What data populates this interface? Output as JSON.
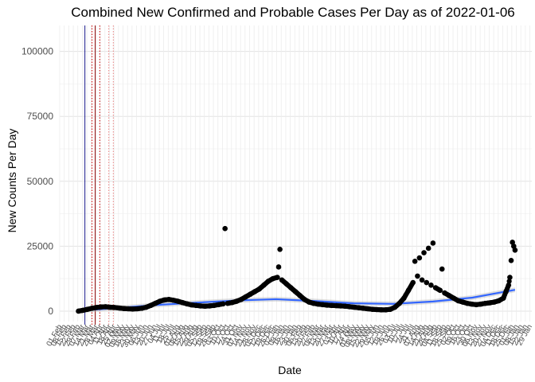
{
  "chart_data": {
    "type": "scatter",
    "title": "Combined New Confirmed and Probable Cases Per Day as of 2022-01-06",
    "xlabel": "Date",
    "ylabel": "New Counts Per Day",
    "ylim": [
      -4000,
      110000
    ],
    "y_ticks": [
      0,
      25000,
      50000,
      75000,
      100000
    ],
    "y_tick_labels": [
      "0",
      "25000",
      "50000",
      "75000",
      "100000"
    ],
    "x_date_range": [
      "2020-02-01",
      "2022-02-01"
    ],
    "x_tick_labels_note": "Weekly date tick labels, rotated 60°, heavily overlapping",
    "x_tick_labels": [
      "01 Feb",
      "08 Feb",
      "15 Feb",
      "22 Feb",
      "29 Feb",
      "07 Mar",
      "14 Mar",
      "21 Mar",
      "28 Mar",
      "04 Apr",
      "11 Apr",
      "18 Apr",
      "25 Apr",
      "02 May",
      "09 May",
      "16 May",
      "23 May",
      "30 May",
      "06 Jun",
      "13 Jun",
      "20 Jun",
      "27 Jun",
      "04 Jul",
      "11 Jul",
      "18 Jul",
      "25 Jul",
      "01 Aug",
      "08 Aug",
      "15 Aug",
      "22 Aug",
      "29 Aug",
      "05 Sep",
      "12 Sep",
      "19 Sep",
      "26 Sep",
      "03 Oct",
      "10 Oct",
      "17 Oct",
      "24 Oct",
      "31 Oct",
      "07 Nov",
      "14 Nov",
      "21 Nov",
      "28 Nov",
      "05 Dec",
      "12 Dec",
      "19 Dec",
      "26 Dec",
      "02 Jan",
      "09 Jan",
      "16 Jan",
      "23 Jan",
      "30 Jan",
      "06 Feb",
      "13 Feb",
      "20 Feb",
      "27 Feb",
      "06 Mar",
      "13 Mar",
      "20 Mar",
      "27 Mar",
      "03 Apr",
      "10 Apr",
      "17 Apr",
      "24 Apr",
      "01 May",
      "08 May",
      "15 May",
      "22 May",
      "29 May",
      "05 Jun",
      "12 Jun",
      "19 Jun",
      "26 Jun",
      "03 Jul",
      "10 Jul",
      "17 Jul",
      "24 Jul",
      "31 Jul",
      "07 Aug",
      "14 Aug",
      "21 Aug",
      "28 Aug",
      "04 Sep",
      "11 Sep",
      "18 Sep",
      "25 Sep",
      "02 Oct",
      "09 Oct",
      "16 Oct",
      "23 Oct",
      "30 Oct",
      "06 Nov",
      "13 Nov",
      "20 Nov",
      "27 Nov",
      "04 Dec",
      "11 Dec",
      "18 Dec",
      "25 Dec",
      "01 Jan",
      "08 Jan",
      "15 Jan",
      "22 Jan",
      "29 Jan"
    ],
    "vlines": [
      {
        "date": "2020-03-11",
        "color": "#1a1a8c",
        "style": "solid"
      },
      {
        "date": "2020-03-27",
        "color": "#8b0000",
        "style": "solid"
      },
      {
        "date": "2020-03-22",
        "color": "#cc0000",
        "style": "dotted"
      },
      {
        "date": "2020-04-03",
        "color": "#cc0000",
        "style": "dotted"
      },
      {
        "date": "2020-04-17",
        "color": "#e88080",
        "style": "dotted"
      },
      {
        "date": "2020-04-24",
        "color": "#e88080",
        "style": "dotted"
      }
    ],
    "series": [
      {
        "kind": "points",
        "color": "#000000",
        "points": [
          [
            "2020-03-01",
            0
          ],
          [
            "2020-03-08",
            300
          ],
          [
            "2020-03-15",
            700
          ],
          [
            "2020-03-22",
            1100
          ],
          [
            "2020-03-29",
            1400
          ],
          [
            "2020-04-05",
            1600
          ],
          [
            "2020-04-12",
            1700
          ],
          [
            "2020-04-19",
            1500
          ],
          [
            "2020-04-26",
            1400
          ],
          [
            "2020-05-03",
            1200
          ],
          [
            "2020-05-10",
            1000
          ],
          [
            "2020-05-17",
            900
          ],
          [
            "2020-05-24",
            800
          ],
          [
            "2020-05-31",
            900
          ],
          [
            "2020-06-07",
            1100
          ],
          [
            "2020-06-14",
            1500
          ],
          [
            "2020-06-21",
            2200
          ],
          [
            "2020-06-28",
            3000
          ],
          [
            "2020-07-05",
            3800
          ],
          [
            "2020-07-12",
            4300
          ],
          [
            "2020-07-19",
            4500
          ],
          [
            "2020-07-26",
            4200
          ],
          [
            "2020-08-02",
            3800
          ],
          [
            "2020-08-09",
            3300
          ],
          [
            "2020-08-16",
            2800
          ],
          [
            "2020-08-23",
            2400
          ],
          [
            "2020-08-30",
            2200
          ],
          [
            "2020-09-06",
            2000
          ],
          [
            "2020-09-13",
            1900
          ],
          [
            "2020-09-20",
            2000
          ],
          [
            "2020-09-27",
            2200
          ],
          [
            "2020-10-04",
            2500
          ],
          [
            "2020-10-11",
            2800
          ],
          [
            "2020-10-14",
            31800
          ],
          [
            "2020-10-18",
            3000
          ],
          [
            "2020-10-25",
            3300
          ],
          [
            "2020-11-01",
            3800
          ],
          [
            "2020-11-08",
            4500
          ],
          [
            "2020-11-15",
            5500
          ],
          [
            "2020-11-22",
            6500
          ],
          [
            "2020-11-29",
            7500
          ],
          [
            "2020-12-06",
            8500
          ],
          [
            "2020-12-13",
            10000
          ],
          [
            "2020-12-20",
            11500
          ],
          [
            "2020-12-27",
            12500
          ],
          [
            "2021-01-03",
            13000
          ],
          [
            "2021-01-05",
            17000
          ],
          [
            "2021-01-07",
            23800
          ],
          [
            "2021-01-10",
            12000
          ],
          [
            "2021-01-17",
            10500
          ],
          [
            "2021-01-24",
            9000
          ],
          [
            "2021-01-31",
            7500
          ],
          [
            "2021-02-07",
            6000
          ],
          [
            "2021-02-14",
            4500
          ],
          [
            "2021-02-21",
            3500
          ],
          [
            "2021-02-28",
            3000
          ],
          [
            "2021-03-07",
            2700
          ],
          [
            "2021-03-14",
            2500
          ],
          [
            "2021-03-21",
            2300
          ],
          [
            "2021-03-28",
            2200
          ],
          [
            "2021-04-04",
            2100
          ],
          [
            "2021-04-11",
            2000
          ],
          [
            "2021-04-18",
            1900
          ],
          [
            "2021-04-25",
            1700
          ],
          [
            "2021-05-02",
            1500
          ],
          [
            "2021-05-09",
            1300
          ],
          [
            "2021-05-16",
            1100
          ],
          [
            "2021-05-23",
            900
          ],
          [
            "2021-05-30",
            700
          ],
          [
            "2021-06-06",
            600
          ],
          [
            "2021-06-13",
            500
          ],
          [
            "2021-06-20",
            500
          ],
          [
            "2021-06-27",
            700
          ],
          [
            "2021-07-04",
            1500
          ],
          [
            "2021-07-11",
            3000
          ],
          [
            "2021-07-18",
            5000
          ],
          [
            "2021-07-25",
            8000
          ],
          [
            "2021-08-01",
            11000
          ],
          [
            "2021-08-04",
            19200
          ],
          [
            "2021-08-08",
            13500
          ],
          [
            "2021-08-11",
            20500
          ],
          [
            "2021-08-15",
            12000
          ],
          [
            "2021-08-18",
            22500
          ],
          [
            "2021-08-22",
            11000
          ],
          [
            "2021-08-25",
            24200
          ],
          [
            "2021-08-29",
            10000
          ],
          [
            "2021-09-01",
            26200
          ],
          [
            "2021-09-05",
            9000
          ],
          [
            "2021-09-12",
            8000
          ],
          [
            "2021-09-15",
            16200
          ],
          [
            "2021-09-19",
            7000
          ],
          [
            "2021-09-26",
            6000
          ],
          [
            "2021-10-03",
            5000
          ],
          [
            "2021-10-10",
            4000
          ],
          [
            "2021-10-17",
            3500
          ],
          [
            "2021-10-24",
            3000
          ],
          [
            "2021-10-31",
            2700
          ],
          [
            "2021-11-07",
            2500
          ],
          [
            "2021-11-14",
            2700
          ],
          [
            "2021-11-21",
            3000
          ],
          [
            "2021-11-28",
            3200
          ],
          [
            "2021-12-05",
            3500
          ],
          [
            "2021-12-12",
            4000
          ],
          [
            "2021-12-19",
            5000
          ],
          [
            "2021-12-23",
            7500
          ],
          [
            "2021-12-27",
            10000
          ],
          [
            "2021-12-29",
            13000
          ],
          [
            "2021-12-31",
            19500
          ],
          [
            "2022-01-02",
            26500
          ],
          [
            "2022-01-04",
            25000
          ],
          [
            "2022-01-06",
            23500
          ]
        ]
      },
      {
        "kind": "smooth",
        "color": "#3366ff",
        "points": [
          [
            "2020-03-01",
            200
          ],
          [
            "2020-05-01",
            1200
          ],
          [
            "2020-07-01",
            2400
          ],
          [
            "2020-09-01",
            3300
          ],
          [
            "2020-11-01",
            4100
          ],
          [
            "2021-01-01",
            4600
          ],
          [
            "2021-03-01",
            3900
          ],
          [
            "2021-05-01",
            3000
          ],
          [
            "2021-07-01",
            2800
          ],
          [
            "2021-09-01",
            3700
          ],
          [
            "2021-11-01",
            5200
          ],
          [
            "2022-01-06",
            8200
          ]
        ]
      }
    ]
  }
}
